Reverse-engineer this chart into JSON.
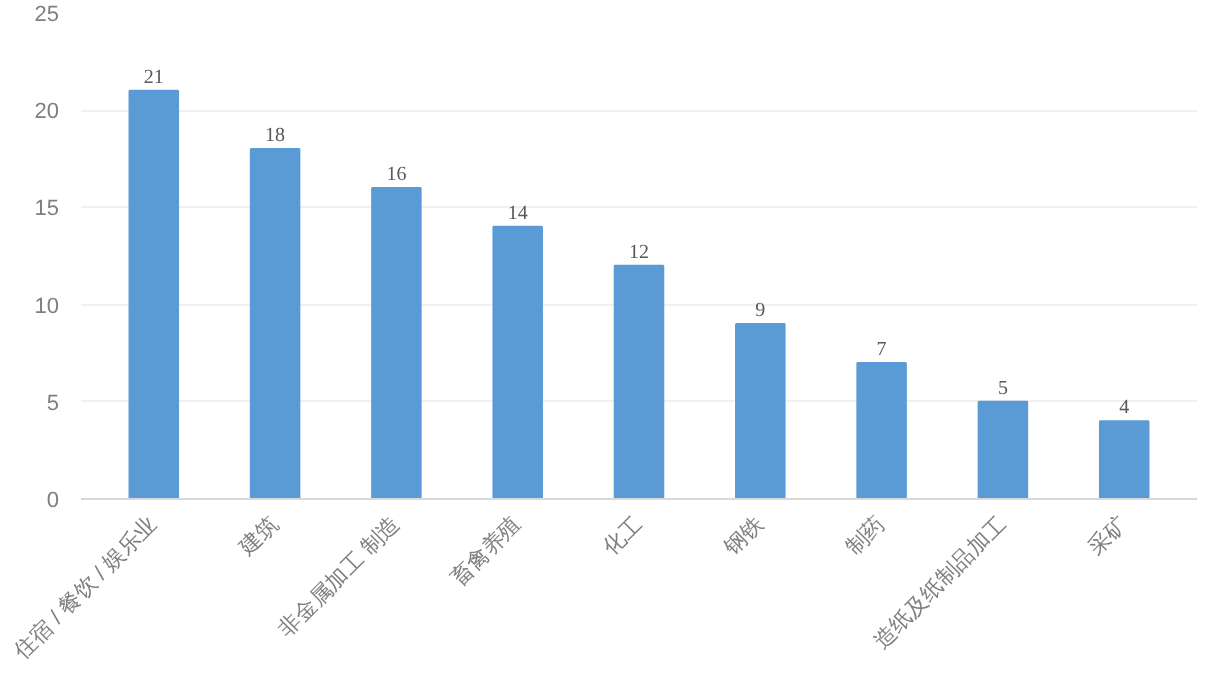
{
  "chart_data": {
    "type": "bar",
    "categories": [
      "住宿 / 餐饮 / 娱乐业",
      "建筑",
      "非金属加工 制造",
      "畜禽养殖",
      "化工",
      "钢铁",
      "制药",
      "造纸及纸制品加工",
      "采矿"
    ],
    "values": [
      21,
      18,
      16,
      14,
      12,
      9,
      7,
      5,
      4
    ],
    "color": "#5b9bd5",
    "ylim": [
      0,
      25
    ],
    "yticks": [
      0,
      5,
      10,
      15,
      20,
      25
    ],
    "grid": "y",
    "data_labels": true
  }
}
